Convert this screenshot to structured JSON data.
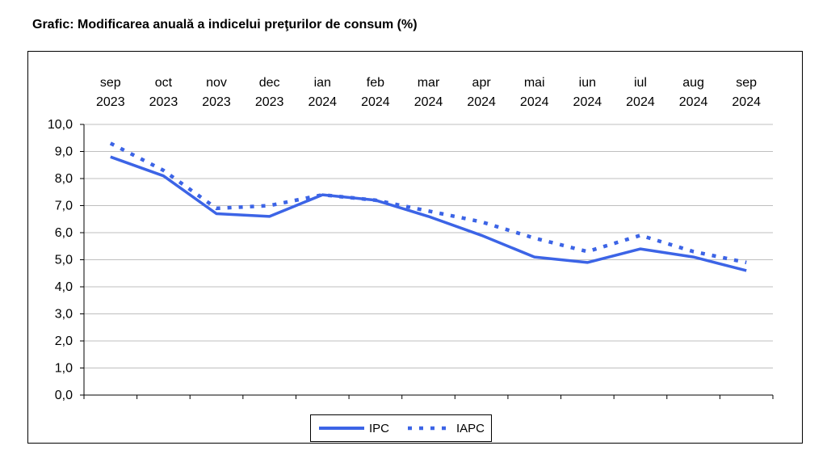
{
  "chart_data": {
    "type": "line",
    "title": "Grafic: Modificarea anuală a indicelui preţurilor de consum (%)",
    "xlabel": "",
    "ylabel": "",
    "categories": [
      [
        "sep",
        "2023"
      ],
      [
        "oct",
        "2023"
      ],
      [
        "nov",
        "2023"
      ],
      [
        "dec",
        "2023"
      ],
      [
        "ian",
        "2024"
      ],
      [
        "feb",
        "2024"
      ],
      [
        "mar",
        "2024"
      ],
      [
        "apr",
        "2024"
      ],
      [
        "mai",
        "2024"
      ],
      [
        "iun",
        "2024"
      ],
      [
        "iul",
        "2024"
      ],
      [
        "aug",
        "2024"
      ],
      [
        "sep",
        "2024"
      ]
    ],
    "ylim": [
      0,
      10
    ],
    "yticks": [
      "0,0",
      "1,0",
      "2,0",
      "3,0",
      "4,0",
      "5,0",
      "6,0",
      "7,0",
      "8,0",
      "9,0",
      "10,0"
    ],
    "grid": true,
    "legend_position": "bottom",
    "series": [
      {
        "name": "IPC",
        "style": "solid",
        "color": "#3c64e6",
        "values": [
          8.8,
          8.1,
          6.7,
          6.6,
          7.4,
          7.2,
          6.6,
          5.9,
          5.1,
          4.9,
          5.4,
          5.1,
          4.6
        ]
      },
      {
        "name": "IAPC",
        "style": "dotted",
        "color": "#3c64e6",
        "values": [
          9.3,
          8.3,
          6.9,
          7.0,
          7.4,
          7.2,
          6.8,
          6.4,
          5.8,
          5.3,
          5.9,
          5.3,
          4.9
        ]
      }
    ]
  }
}
